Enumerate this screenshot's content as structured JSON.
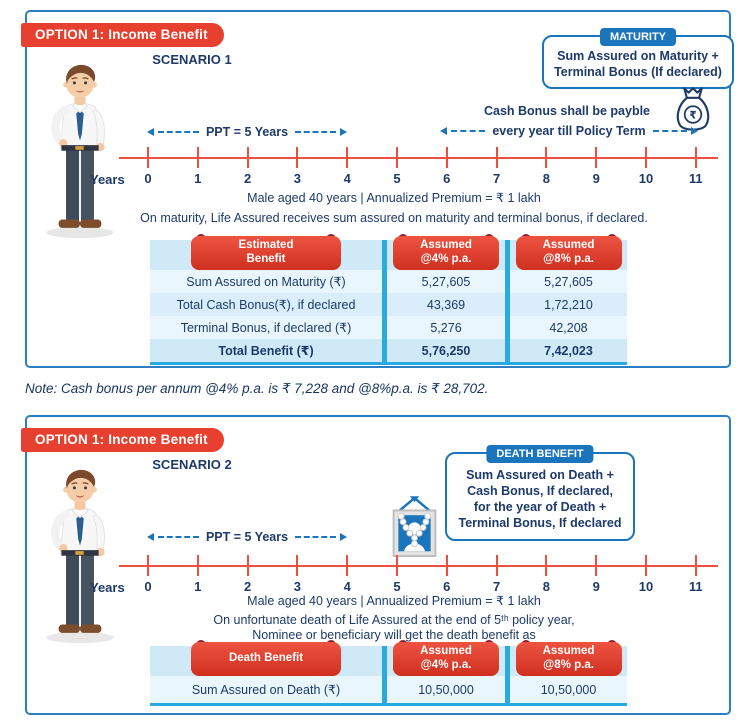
{
  "colors": {
    "accent_red": "#e8402f",
    "brand_blue": "#1b75bc",
    "divider_cyan": "#29abe2",
    "navy_text": "#1d3a6b",
    "timeline_red": "#f04e3e",
    "table_band": "#cfe9f7",
    "table_row_light": "#eaf6fd",
    "table_row_mid": "#d9eefa",
    "ribbon_red": "#d93a28",
    "ribbon_notch": "#8c2231"
  },
  "icons": {
    "man": "man-illustration",
    "money_bag": "money-bag-icon",
    "memorial_photo": "memorial-photo-icon"
  },
  "panel1": {
    "badge": "OPTION 1: Income Benefit",
    "scenario": "SCENARIO 1",
    "maturity_callout": {
      "badge": "MATURITY",
      "line1": "Sum Assured on Maturity +",
      "line2": "Terminal Bonus (If declared)"
    },
    "cash_bonus": {
      "line1": "Cash Bonus shall be payble",
      "line2": "every year till Policy Term"
    },
    "ppt_label": "PPT = 5 Years",
    "years_label": "Years",
    "year_ticks": [
      "0",
      "1",
      "2",
      "3",
      "4",
      "5",
      "6",
      "7",
      "8",
      "9",
      "10",
      "11"
    ],
    "subtitle1": "Male aged 40 years | Annualized Premium = ₹ 1 lakh",
    "subtitle2": "On maturity, Life Assured receives sum assured on maturity and terminal bonus, if declared.",
    "table": {
      "headers": [
        {
          "line1": "Estimated",
          "line2": "Benefit"
        },
        {
          "line1": "Assumed",
          "line2": "@4% p.a."
        },
        {
          "line1": "Assumed",
          "line2": "@8% p.a."
        }
      ],
      "rows": [
        {
          "label": "Sum Assured on Maturity (₹)",
          "v4": "5,27,605",
          "v8": "5,27,605"
        },
        {
          "label": "Total Cash Bonus(₹), if declared",
          "v4": "43,369",
          "v8": "1,72,210"
        },
        {
          "label": "Terminal Bonus, if declared (₹)",
          "v4": "5,276",
          "v8": "42,208"
        },
        {
          "label": "Total Benefit (₹)",
          "v4": "5,76,250",
          "v8": "7,42,023"
        }
      ]
    }
  },
  "note": "Note: Cash bonus per annum @4% p.a. is ₹ 7,228 and @8%p.a. is ₹ 28,702.",
  "panel2": {
    "badge": "OPTION 1: Income Benefit",
    "scenario": "SCENARIO 2",
    "death_callout": {
      "badge": "DEATH BENEFIT",
      "line1": "Sum Assured on Death +",
      "line2": "Cash Bonus, If declared,",
      "line3": "for the year of Death +",
      "line4": "Terminal Bonus, If declared"
    },
    "ppt_label": "PPT = 5 Years",
    "years_label": "Years",
    "year_ticks": [
      "0",
      "1",
      "2",
      "3",
      "4",
      "5",
      "6",
      "7",
      "8",
      "9",
      "10",
      "11"
    ],
    "subtitle1": "Male aged 40 years | Annualized Premium = ₹ 1 lakh",
    "subtitle2a": "On unfortunate death of Life Assured at the end of 5ᵗʰ policy year,",
    "subtitle2b": "Nominee or beneficiary will get the death benefit as",
    "table": {
      "headers": [
        {
          "line1": "Death Benefit",
          "line2": ""
        },
        {
          "line1": "Assumed",
          "line2": "@4% p.a."
        },
        {
          "line1": "Assumed",
          "line2": "@8% p.a."
        }
      ],
      "rows": [
        {
          "label": "Sum Assured on Death (₹)",
          "v4": "10,50,000",
          "v8": "10,50,000"
        }
      ]
    }
  }
}
